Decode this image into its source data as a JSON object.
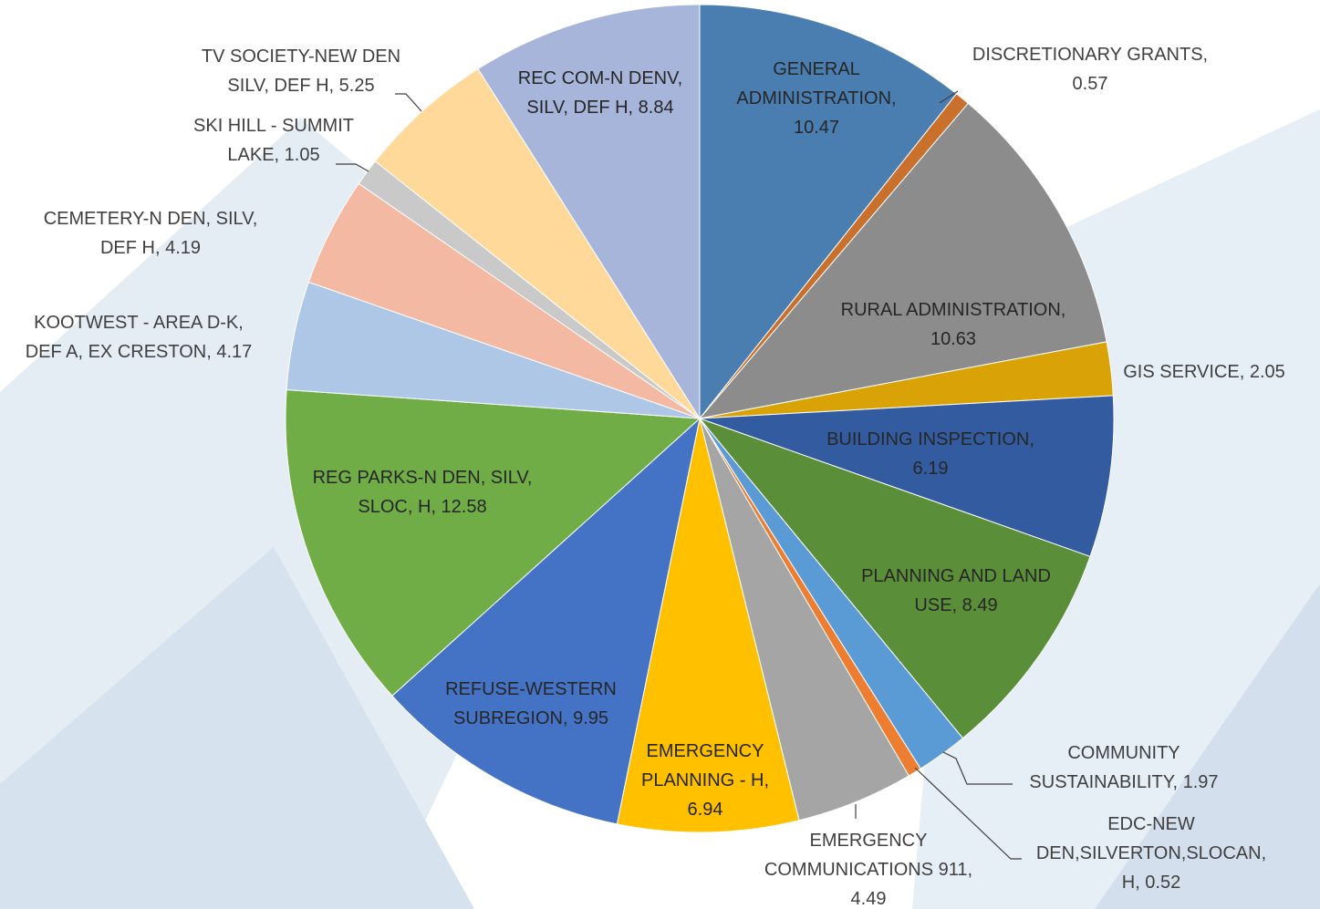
{
  "chart_data": {
    "type": "pie",
    "start_angle_deg": 0,
    "direction": "clockwise",
    "slices": [
      {
        "label": "GENERAL ADMINISTRATION",
        "value": 10.47,
        "color": "#4a7eb0",
        "text_lines": [
          "GENERAL",
          "ADMINISTRATION,",
          "10.47"
        ]
      },
      {
        "label": "DISCRETIONARY GRANTS",
        "value": 0.57,
        "color": "#c8702c",
        "text_lines": [
          "DISCRETIONARY GRANTS,",
          "0.57"
        ]
      },
      {
        "label": "RURAL ADMINISTRATION",
        "value": 10.63,
        "color": "#8c8c8c",
        "text_lines": [
          "RURAL ADMINISTRATION,",
          "10.63"
        ]
      },
      {
        "label": "GIS SERVICE",
        "value": 2.05,
        "color": "#d9a308",
        "text_lines": [
          "GIS SERVICE,  2.05"
        ]
      },
      {
        "label": "BUILDING INSPECTION",
        "value": 6.19,
        "color": "#335ca0",
        "text_lines": [
          "BUILDING INSPECTION,",
          "6.19"
        ]
      },
      {
        "label": "PLANNING AND LAND USE",
        "value": 8.49,
        "color": "#5a8e38",
        "text_lines": [
          "PLANNING AND LAND",
          "USE,  8.49"
        ]
      },
      {
        "label": "COMMUNITY SUSTAINABILITY",
        "value": 1.97,
        "color": "#5b9bd5",
        "text_lines": [
          "COMMUNITY",
          "SUSTAINABILITY,  1.97"
        ]
      },
      {
        "label": "EDC-NEW DEN,SILVERTON,SLOCAN, H",
        "value": 0.52,
        "color": "#ed7d31",
        "text_lines": [
          "EDC-NEW",
          "DEN,SILVERTON,SLOCAN,",
          "H,  0.52"
        ]
      },
      {
        "label": "EMERGENCY COMMUNICATIONS 911",
        "value": 4.49,
        "color": "#a5a5a5",
        "text_lines": [
          "EMERGENCY",
          "COMMUNICATIONS 911,",
          "4.49"
        ]
      },
      {
        "label": "EMERGENCY PLANNING - H",
        "value": 6.94,
        "color": "#ffc000",
        "text_lines": [
          "EMERGENCY",
          "PLANNING - H,",
          "6.94"
        ]
      },
      {
        "label": "REFUSE-WESTERN SUBREGION",
        "value": 9.95,
        "color": "#4472c4",
        "text_lines": [
          "REFUSE-WESTERN",
          "SUBREGION,  9.95"
        ]
      },
      {
        "label": "REG PARKS-N DEN, SILV, SLOC, H",
        "value": 12.58,
        "color": "#70ad47",
        "text_lines": [
          "REG PARKS-N DEN, SILV,",
          "SLOC, H,  12.58"
        ]
      },
      {
        "label": "KOOTWEST - AREA D-K, DEF A, EX CRESTON",
        "value": 4.17,
        "color": "#aec7e6",
        "text_lines": [
          "KOOTWEST - AREA D-K,",
          "DEF A, EX CRESTON,  4.17"
        ]
      },
      {
        "label": "CEMETERY-N DEN, SILV, DEF H",
        "value": 4.19,
        "color": "#f4b9a3",
        "text_lines": [
          "CEMETERY-N DEN, SILV,",
          "DEF H,  4.19"
        ]
      },
      {
        "label": "SKI HILL - SUMMIT LAKE",
        "value": 1.05,
        "color": "#c9c9c9",
        "text_lines": [
          "SKI HILL - SUMMIT",
          "LAKE,  1.05"
        ]
      },
      {
        "label": "TV SOCIETY-NEW DEN SILV, DEF H",
        "value": 5.25,
        "color": "#ffd99a",
        "text_lines": [
          "TV SOCIETY-NEW DEN",
          "SILV, DEF H,  5.25"
        ]
      },
      {
        "label": "REC COM-N DENV, SILV, DEF H",
        "value": 8.84,
        "color": "#a7b5da",
        "text_lines": [
          "REC COM-N DENV,",
          "SILV, DEF H,  8.84"
        ]
      }
    ]
  }
}
